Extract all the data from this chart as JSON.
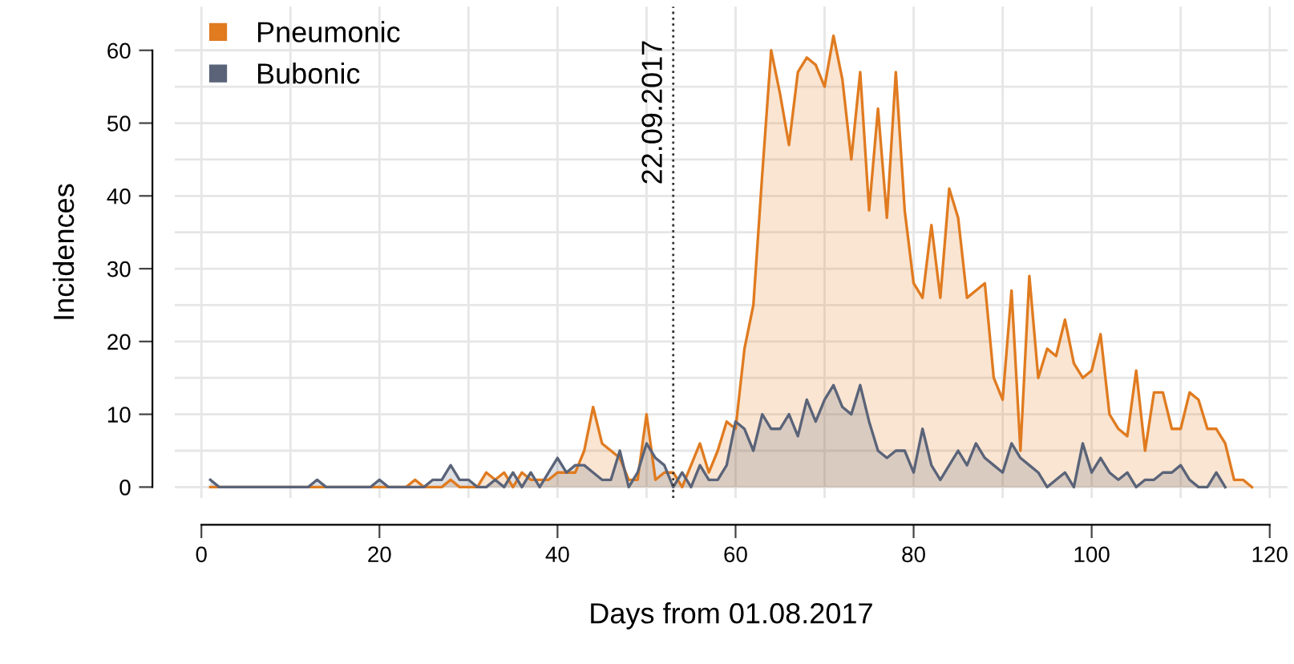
{
  "chart_data": {
    "type": "area",
    "xlabel": "Days from 01.08.2017",
    "ylabel": "Incidences",
    "xlim": [
      -3,
      122
    ],
    "ylim": [
      -1.5,
      66
    ],
    "xticks": [
      0,
      20,
      40,
      60,
      80,
      100,
      120
    ],
    "yticks": [
      0,
      10,
      20,
      30,
      40,
      50,
      60
    ],
    "grid": true,
    "legend": "top left",
    "ref_lines": [
      {
        "axis": "x",
        "value": 53,
        "label": "22.09.2017",
        "color": "#333333",
        "line_style": "dotted"
      }
    ],
    "series": [
      {
        "name": "Pneumonic",
        "color": "#e07b20",
        "x": [
          1,
          2,
          3,
          4,
          5,
          6,
          7,
          8,
          9,
          10,
          11,
          12,
          13,
          14,
          15,
          16,
          17,
          18,
          19,
          20,
          21,
          22,
          23,
          24,
          25,
          26,
          27,
          28,
          29,
          30,
          31,
          32,
          33,
          34,
          35,
          36,
          37,
          38,
          39,
          40,
          41,
          42,
          43,
          44,
          45,
          46,
          47,
          48,
          49,
          50,
          51,
          52,
          53,
          54,
          55,
          56,
          57,
          58,
          59,
          60,
          61,
          62,
          63,
          64,
          65,
          66,
          67,
          68,
          69,
          70,
          71,
          72,
          73,
          74,
          75,
          76,
          77,
          78,
          79,
          80,
          81,
          82,
          83,
          84,
          85,
          86,
          87,
          88,
          89,
          90,
          91,
          92,
          93,
          94,
          95,
          96,
          97,
          98,
          99,
          100,
          101,
          102,
          103,
          104,
          105,
          106,
          107,
          108,
          109,
          110,
          111,
          112,
          113,
          114,
          115,
          116,
          117,
          118
        ],
        "values": [
          0,
          0,
          0,
          0,
          0,
          0,
          0,
          0,
          0,
          0,
          0,
          0,
          0,
          0,
          0,
          0,
          0,
          0,
          0,
          0,
          0,
          0,
          0,
          1,
          0,
          0,
          0,
          1,
          0,
          0,
          0,
          2,
          1,
          2,
          0,
          2,
          1,
          1,
          1,
          2,
          2,
          2,
          5,
          11,
          6,
          5,
          4,
          1,
          1,
          10,
          1,
          2,
          2,
          0,
          3,
          6,
          2,
          5,
          9,
          8,
          19,
          25,
          43,
          60,
          54,
          47,
          57,
          59,
          58,
          55,
          62,
          56,
          45,
          57,
          38,
          52,
          37,
          57,
          38,
          28,
          26,
          36,
          26,
          41,
          37,
          26,
          27,
          28,
          15,
          12,
          27,
          5,
          29,
          15,
          19,
          18,
          23,
          17,
          15,
          16,
          21,
          10,
          8,
          7,
          16,
          5,
          13,
          13,
          8,
          8,
          13,
          12,
          8,
          8,
          6,
          1,
          1,
          0
        ]
      },
      {
        "name": "Bubonic",
        "color": "#5a6378",
        "x": [
          1,
          2,
          3,
          4,
          5,
          6,
          7,
          8,
          9,
          10,
          11,
          12,
          13,
          14,
          15,
          16,
          17,
          18,
          19,
          20,
          21,
          22,
          23,
          24,
          25,
          26,
          27,
          28,
          29,
          30,
          31,
          32,
          33,
          34,
          35,
          36,
          37,
          38,
          39,
          40,
          41,
          42,
          43,
          44,
          45,
          46,
          47,
          48,
          49,
          50,
          51,
          52,
          53,
          54,
          55,
          56,
          57,
          58,
          59,
          60,
          61,
          62,
          63,
          64,
          65,
          66,
          67,
          68,
          69,
          70,
          71,
          72,
          73,
          74,
          75,
          76,
          77,
          78,
          79,
          80,
          81,
          82,
          83,
          84,
          85,
          86,
          87,
          88,
          89,
          90,
          91,
          92,
          93,
          94,
          95,
          96,
          97,
          98,
          99,
          100,
          101,
          102,
          103,
          104,
          105,
          106,
          107,
          108,
          109,
          110,
          111,
          112,
          113,
          114,
          115
        ],
        "values": [
          1,
          0,
          0,
          0,
          0,
          0,
          0,
          0,
          0,
          0,
          0,
          0,
          1,
          0,
          0,
          0,
          0,
          0,
          0,
          1,
          0,
          0,
          0,
          0,
          0,
          1,
          1,
          3,
          1,
          1,
          0,
          0,
          1,
          0,
          2,
          0,
          2,
          0,
          2,
          4,
          2,
          3,
          3,
          2,
          1,
          1,
          5,
          0,
          2,
          6,
          4,
          3,
          0,
          2,
          0,
          3,
          1,
          1,
          3,
          9,
          8,
          5,
          10,
          8,
          8,
          10,
          7,
          12,
          9,
          12,
          14,
          11,
          10,
          14,
          9,
          5,
          4,
          5,
          5,
          2,
          8,
          3,
          1,
          3,
          5,
          3,
          6,
          4,
          3,
          2,
          6,
          4,
          3,
          2,
          0,
          1,
          2,
          0,
          6,
          2,
          4,
          2,
          1,
          2,
          0,
          1,
          1,
          2,
          2,
          3,
          1,
          0,
          0,
          2,
          0
        ]
      }
    ]
  }
}
